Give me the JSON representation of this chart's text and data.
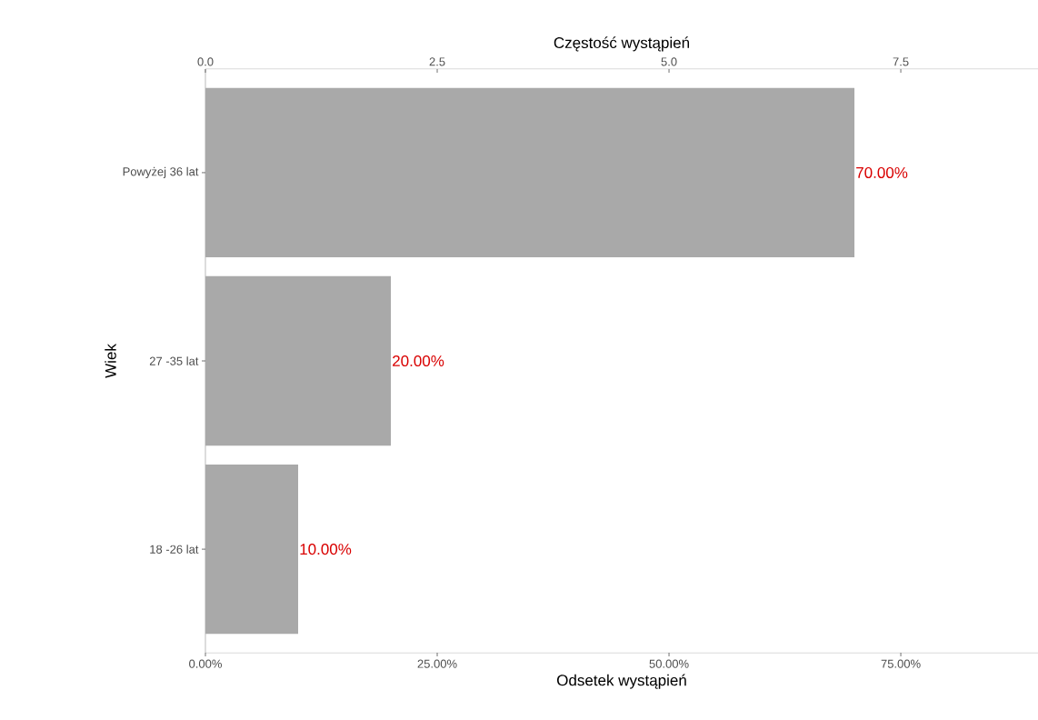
{
  "chart_data": {
    "type": "bar",
    "orientation": "horizontal",
    "xlabel": "Odsetek wystąpień",
    "ylabel": "Wiek",
    "x2label": "Częstość wystąpień",
    "categories": [
      "Powyżej 36 lat",
      "27 -35 lat",
      "18 -26 lat"
    ],
    "values": [
      70,
      20,
      10
    ],
    "value_labels": [
      "70.00%",
      "20.00%",
      "10.00%"
    ],
    "color": "#a9a9a9",
    "xlim": [
      0,
      89.8
    ],
    "xticks": [
      {
        "value": 0,
        "label": "0.00%"
      },
      {
        "value": 25,
        "label": "25.00%"
      },
      {
        "value": 50,
        "label": "50.00%"
      },
      {
        "value": 75,
        "label": "75.00%"
      }
    ],
    "x2lim": [
      0,
      8.98
    ],
    "x2ticks": [
      {
        "value": 0,
        "label": "0.0"
      },
      2.5,
      {
        "value": 5,
        "label": "5.0"
      },
      7.5
    ]
  }
}
